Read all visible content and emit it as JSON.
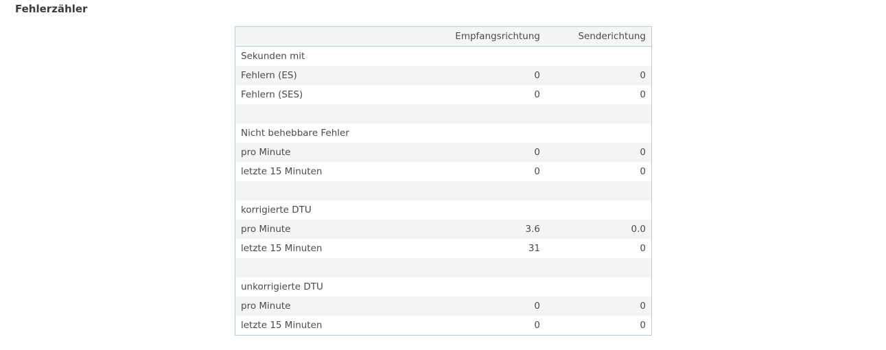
{
  "title": "Fehlerzähler",
  "headers": [
    "",
    "Empfangsrichtung",
    "Senderichtung"
  ],
  "rows": [
    {
      "label": "Sekunden mit",
      "rx": "",
      "tx": ""
    },
    {
      "label": "Fehlern (ES)",
      "rx": "0",
      "tx": "0"
    },
    {
      "label": "Fehlern (SES)",
      "rx": "0",
      "tx": "0"
    },
    {
      "label": "",
      "rx": "",
      "tx": ""
    },
    {
      "label": "Nicht behebbare Fehler",
      "rx": "",
      "tx": ""
    },
    {
      "label": "pro Minute",
      "rx": "0",
      "tx": "0"
    },
    {
      "label": "letzte 15 Minuten",
      "rx": "0",
      "tx": "0"
    },
    {
      "label": "",
      "rx": "",
      "tx": ""
    },
    {
      "label": "korrigierte DTU",
      "rx": "",
      "tx": ""
    },
    {
      "label": "pro Minute",
      "rx": "3.6",
      "tx": "0.0"
    },
    {
      "label": "letzte 15 Minuten",
      "rx": "31",
      "tx": "0"
    },
    {
      "label": "",
      "rx": "",
      "tx": ""
    },
    {
      "label": "unkorrigierte DTU",
      "rx": "",
      "tx": ""
    },
    {
      "label": "pro Minute",
      "rx": "0",
      "tx": "0"
    },
    {
      "label": "letzte 15 Minuten",
      "rx": "0",
      "tx": "0"
    }
  ]
}
